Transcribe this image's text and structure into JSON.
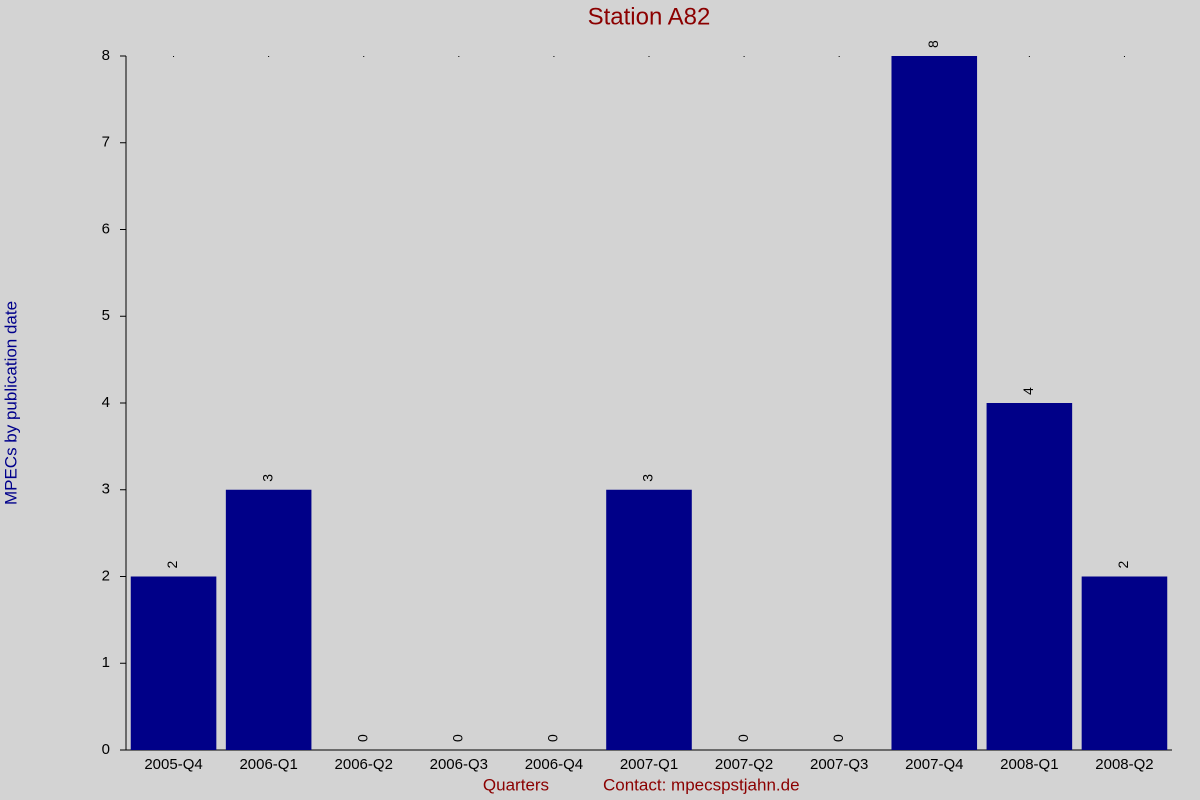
{
  "chart_data": {
    "type": "bar",
    "title": "Station A82",
    "y_label": "MPECs by publication date",
    "x_label": "Quarters",
    "contact": "Contact: mpecspstjahn.de",
    "categories": [
      "2005-Q4",
      "2006-Q1",
      "2006-Q2",
      "2006-Q3",
      "2006-Q4",
      "2007-Q1",
      "2007-Q2",
      "2007-Q3",
      "2007-Q4",
      "2008-Q1",
      "2008-Q2"
    ],
    "values": [
      2,
      3,
      0,
      0,
      0,
      3,
      0,
      0,
      8,
      4,
      2
    ],
    "color": "#000088",
    "ylim": [
      0,
      8
    ],
    "yticks": [
      0,
      1,
      2,
      3,
      4,
      5,
      6,
      7,
      8
    ]
  }
}
